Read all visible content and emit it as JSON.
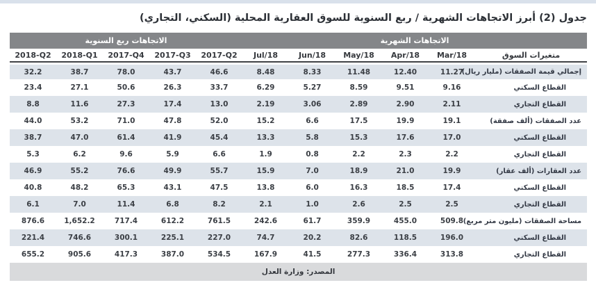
{
  "title": "جدول (2) أبرز الاتجاهات الشهرية / ربع السنوية للسوق العقارية المحلية (السكني، التجاري)",
  "colors": {
    "header_band": "#848689",
    "row_alt": "#dde3ea",
    "footer_bg": "#d9dadc",
    "top_strip": "#d9e1eb"
  },
  "table": {
    "group_headers": {
      "quarterly": "الاتجاهات ربع السنوية",
      "monthly": "الاتجاهات الشهرية"
    },
    "variables_header": "متغيرات السوق",
    "columns": [
      "2018-Q2",
      "2018-Q1",
      "2017-Q4",
      "2017-Q3",
      "2017-Q2",
      "Jul/18",
      "Jun/18",
      "May/18",
      "Apr/18",
      "Mar/18"
    ],
    "rows": [
      {
        "label": "إجمالي قيمة الصفقات (مليار ريال)",
        "sub": false,
        "values": [
          "32.2",
          "38.7",
          "78.0",
          "43.7",
          "46.6",
          "8.48",
          "8.33",
          "11.48",
          "12.40",
          "11.27"
        ]
      },
      {
        "label": "القطاع السكني",
        "sub": true,
        "values": [
          "23.4",
          "27.1",
          "50.6",
          "26.3",
          "33.7",
          "6.29",
          "5.27",
          "8.59",
          "9.51",
          "9.16"
        ]
      },
      {
        "label": "القطاع التجاري",
        "sub": true,
        "values": [
          "8.8",
          "11.6",
          "27.3",
          "17.4",
          "13.0",
          "2.19",
          "3.06",
          "2.89",
          "2.90",
          "2.11"
        ]
      },
      {
        "label": "عدد الصفقات (ألف صفقة)",
        "sub": false,
        "values": [
          "44.0",
          "53.2",
          "71.0",
          "47.8",
          "52.0",
          "15.2",
          "6.6",
          "17.5",
          "19.9",
          "19.1"
        ]
      },
      {
        "label": "القطاع السكني",
        "sub": true,
        "values": [
          "38.7",
          "47.0",
          "61.4",
          "41.9",
          "45.4",
          "13.3",
          "5.8",
          "15.3",
          "17.6",
          "17.0"
        ]
      },
      {
        "label": "القطاع التجاري",
        "sub": true,
        "values": [
          "5.3",
          "6.2",
          "9.6",
          "5.9",
          "6.6",
          "1.9",
          "0.8",
          "2.2",
          "2.3",
          "2.2"
        ]
      },
      {
        "label": "عدد العقارات (ألف عقار)",
        "sub": false,
        "values": [
          "46.9",
          "55.2",
          "76.6",
          "49.9",
          "55.7",
          "15.9",
          "7.0",
          "18.9",
          "21.0",
          "19.9"
        ]
      },
      {
        "label": "القطاع السكني",
        "sub": true,
        "values": [
          "40.8",
          "48.2",
          "65.3",
          "43.1",
          "47.5",
          "13.8",
          "6.0",
          "16.3",
          "18.5",
          "17.4"
        ]
      },
      {
        "label": "القطاع التجاري",
        "sub": true,
        "values": [
          "6.1",
          "7.0",
          "11.4",
          "6.8",
          "8.2",
          "2.1",
          "1.0",
          "2.6",
          "2.5",
          "2.5"
        ]
      },
      {
        "label": "مساحة الصفقات (مليون متر مربع)",
        "sub": false,
        "values": [
          "876.6",
          "1,652.2",
          "717.4",
          "612.2",
          "761.5",
          "242.6",
          "61.7",
          "359.9",
          "455.0",
          "509.8"
        ]
      },
      {
        "label": "القطاع السكني",
        "sub": true,
        "values": [
          "221.4",
          "746.6",
          "300.1",
          "225.1",
          "227.0",
          "74.7",
          "20.2",
          "82.6",
          "118.5",
          "196.0"
        ]
      },
      {
        "label": "القطاع التجاري",
        "sub": true,
        "values": [
          "655.2",
          "905.6",
          "417.3",
          "387.0",
          "534.5",
          "167.9",
          "41.5",
          "277.3",
          "336.4",
          "313.8"
        ]
      }
    ],
    "source": "المصدر: وزارة العدل"
  }
}
